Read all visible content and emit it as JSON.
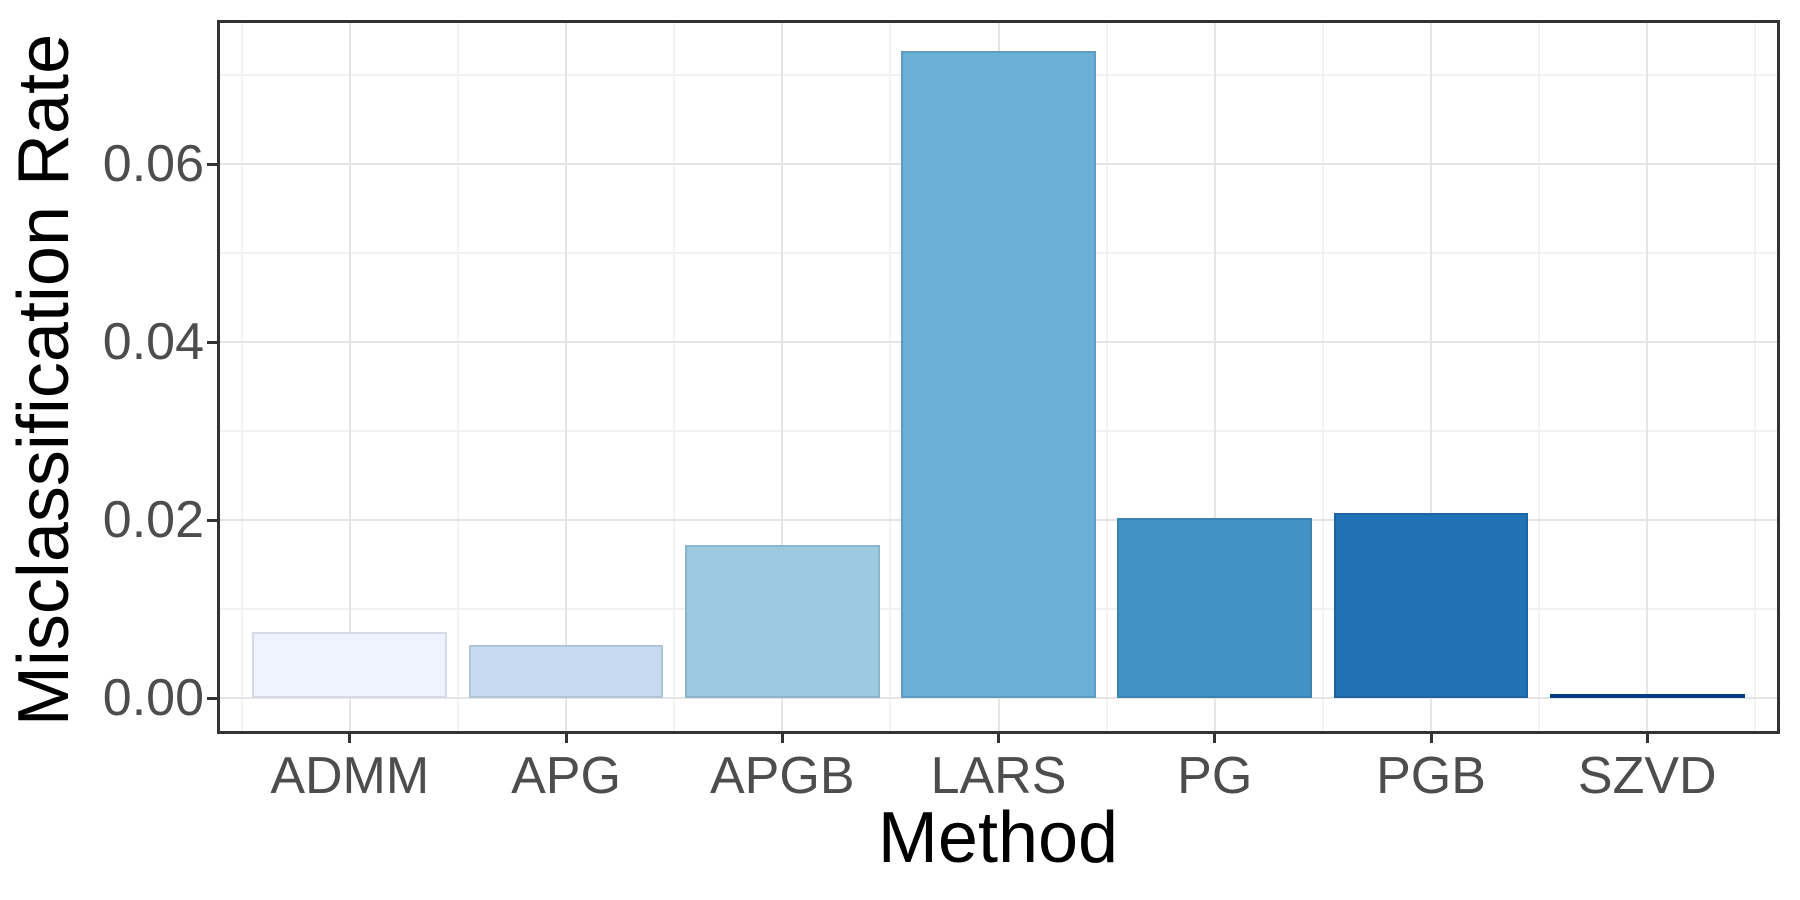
{
  "chart_data": {
    "type": "bar",
    "title": "",
    "xlabel": "Method",
    "ylabel": "Misclassification Rate",
    "categories": [
      "ADMM",
      "APG",
      "APGB",
      "LARS",
      "PG",
      "PGB",
      "SZVD"
    ],
    "values": [
      0.0074,
      0.006,
      0.0172,
      0.0727,
      0.0202,
      0.0208,
      0.0005
    ],
    "bar_colors": [
      "#EFF3FF",
      "#C6DBEF",
      "#9ECAE1",
      "#6BAED6",
      "#4292C6",
      "#2171B5",
      "#084594"
    ],
    "y_ticks": [
      {
        "label": "0.00",
        "value": 0.0
      },
      {
        "label": "0.02",
        "value": 0.02
      },
      {
        "label": "0.04",
        "value": 0.04
      },
      {
        "label": "0.06",
        "value": 0.06
      }
    ],
    "y_minor_values": [
      0.01,
      0.03,
      0.05,
      0.07
    ],
    "ylim": [
      -0.0037,
      0.0759
    ],
    "grid": "major+minor",
    "legend": false,
    "panel_style": {
      "border_color": "#333333",
      "grid_major_color": "#e5e5e5",
      "grid_minor_color": "#f2f2f2",
      "tick_text_color": "#4d4d4d",
      "title_text_color": "#000000",
      "background": "#ffffff"
    }
  }
}
